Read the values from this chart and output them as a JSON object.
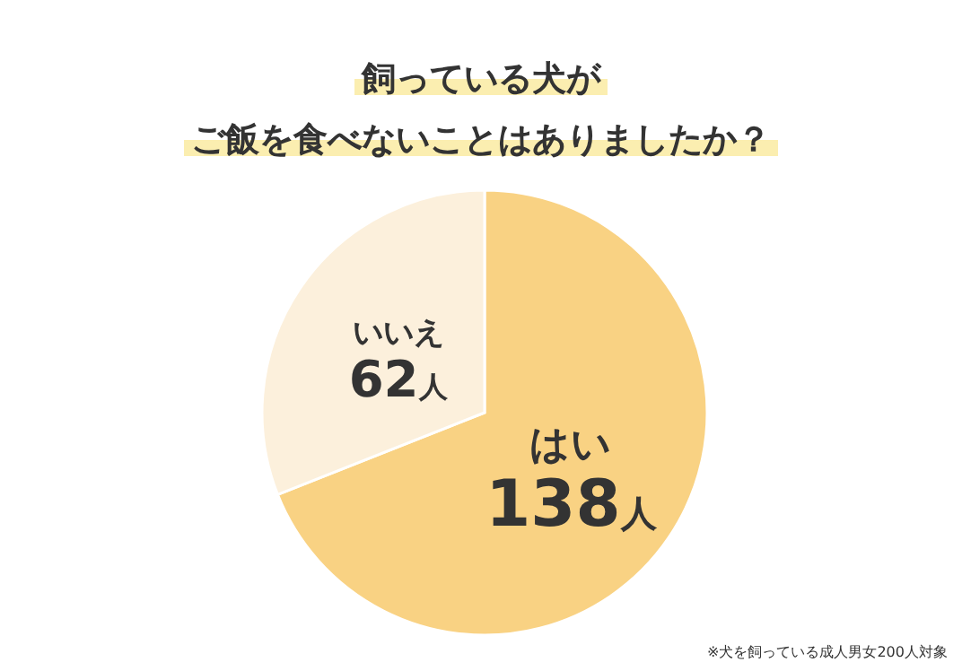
{
  "chart_data": {
    "type": "pie",
    "title": "飼っている犬が",
    "subtitle": "ご飯を食べないことはありましたか？",
    "categories": [
      "はい",
      "いいえ"
    ],
    "values": [
      138,
      62
    ],
    "value_labels": [
      "138人",
      "62人"
    ],
    "colors": [
      "#f9d283",
      "#fcf0dc"
    ],
    "annotations": [
      "※犬を飼っている成人男女200人対象"
    ]
  }
}
